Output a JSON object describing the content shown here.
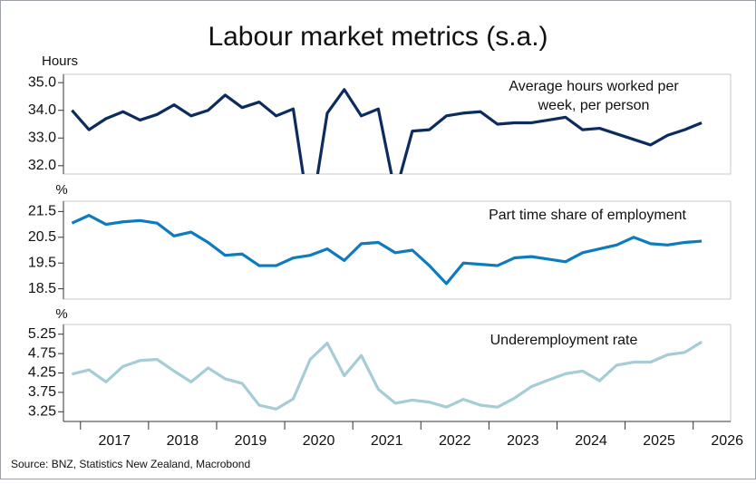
{
  "title": "Labour market metrics (s.a.)",
  "source": "Source: BNZ, Statistics New Zealand, Macrobond",
  "chart_data": [
    {
      "type": "line",
      "ylabel": "Hours",
      "annotation": [
        "Average hours worked per",
        "week, per person"
      ],
      "x": [
        2016.875,
        2017.125,
        2017.375,
        2017.625,
        2017.875,
        2018.125,
        2018.375,
        2018.625,
        2018.875,
        2019.125,
        2019.375,
        2019.625,
        2019.875,
        2020.125,
        2020.375,
        2020.625,
        2020.875,
        2021.125,
        2021.375,
        2021.625,
        2021.875,
        2022.125,
        2022.375,
        2022.625,
        2022.875,
        2023.125,
        2023.375,
        2023.625,
        2023.875,
        2024.125,
        2024.375,
        2024.625,
        2024.875,
        2025.125,
        2025.375,
        2025.625,
        2025.875,
        2026.125
      ],
      "xlim": [
        2016.75,
        2026.55
      ],
      "ylim": [
        31.7,
        35.3
      ],
      "yticks": [
        {
          "value": 35,
          "label": "35.0"
        },
        {
          "value": 34,
          "label": "34.0"
        },
        {
          "value": 33,
          "label": "33.0"
        },
        {
          "value": 32,
          "label": "32.0"
        }
      ],
      "series": [
        {
          "color": "#0c2b5e",
          "values": [
            34.0,
            33.3,
            33.7,
            33.95,
            33.65,
            33.85,
            34.2,
            33.8,
            34.0,
            34.55,
            34.1,
            34.3,
            33.8,
            34.05,
            30.0,
            33.9,
            34.75,
            33.8,
            34.05,
            31.0,
            33.25,
            33.3,
            33.8,
            33.9,
            33.95,
            33.5,
            33.55,
            33.55,
            33.65,
            33.75,
            33.3,
            33.35,
            33.15,
            32.95,
            32.75,
            33.1,
            33.3,
            33.55
          ]
        }
      ]
    },
    {
      "type": "line",
      "ylabel": "%",
      "annotation": [
        "Part time share of employment"
      ],
      "x": [
        2016.875,
        2017.125,
        2017.375,
        2017.625,
        2017.875,
        2018.125,
        2018.375,
        2018.625,
        2018.875,
        2019.125,
        2019.375,
        2019.625,
        2019.875,
        2020.125,
        2020.375,
        2020.625,
        2020.875,
        2021.125,
        2021.375,
        2021.625,
        2021.875,
        2022.125,
        2022.375,
        2022.625,
        2022.875,
        2023.125,
        2023.375,
        2023.625,
        2023.875,
        2024.125,
        2024.375,
        2024.625,
        2024.875,
        2025.125,
        2025.375,
        2025.625,
        2025.875,
        2026.125
      ],
      "xlim": [
        2016.75,
        2026.55
      ],
      "ylim": [
        18.1,
        21.9
      ],
      "yticks": [
        21.5,
        20.5,
        19.5,
        18.5
      ],
      "series": [
        {
          "color": "#0d7bbd",
          "values": [
            21.05,
            21.35,
            21.0,
            21.1,
            21.15,
            21.05,
            20.55,
            20.7,
            20.3,
            19.8,
            19.85,
            19.4,
            19.4,
            19.7,
            19.8,
            20.05,
            19.6,
            20.25,
            20.3,
            19.9,
            20.0,
            19.4,
            18.7,
            19.5,
            19.45,
            19.4,
            19.7,
            19.75,
            19.65,
            19.55,
            19.9,
            20.05,
            20.2,
            20.5,
            20.25,
            20.2,
            20.3,
            20.35
          ]
        }
      ]
    },
    {
      "type": "line",
      "ylabel": "%",
      "annotation": [
        "Underemployment rate"
      ],
      "x": [
        2016.875,
        2017.125,
        2017.375,
        2017.625,
        2017.875,
        2018.125,
        2018.375,
        2018.625,
        2018.875,
        2019.125,
        2019.375,
        2019.625,
        2019.875,
        2020.125,
        2020.375,
        2020.625,
        2020.875,
        2021.125,
        2021.375,
        2021.625,
        2021.875,
        2022.125,
        2022.375,
        2022.625,
        2022.875,
        2023.125,
        2023.375,
        2023.625,
        2023.875,
        2024.125,
        2024.375,
        2024.625,
        2024.875,
        2025.125,
        2025.375,
        2025.625,
        2025.875,
        2026.125
      ],
      "xlim": [
        2016.75,
        2026.55
      ],
      "xticks": [
        2017,
        2018,
        2019,
        2020,
        2021,
        2022,
        2023,
        2024,
        2025,
        2026
      ],
      "ylim": [
        3.0,
        5.5
      ],
      "yticks": [
        5.25,
        4.75,
        4.25,
        3.75,
        3.25
      ],
      "series": [
        {
          "color": "#a6ccd6",
          "values": [
            4.22,
            4.33,
            4.02,
            4.42,
            4.57,
            4.6,
            4.3,
            4.02,
            4.38,
            4.1,
            3.98,
            3.42,
            3.32,
            3.58,
            4.6,
            5.02,
            4.18,
            4.7,
            3.83,
            3.47,
            3.55,
            3.5,
            3.37,
            3.57,
            3.42,
            3.37,
            3.6,
            3.9,
            4.07,
            4.23,
            4.3,
            4.05,
            4.45,
            4.53,
            4.53,
            4.72,
            4.78,
            5.05
          ]
        }
      ]
    }
  ]
}
